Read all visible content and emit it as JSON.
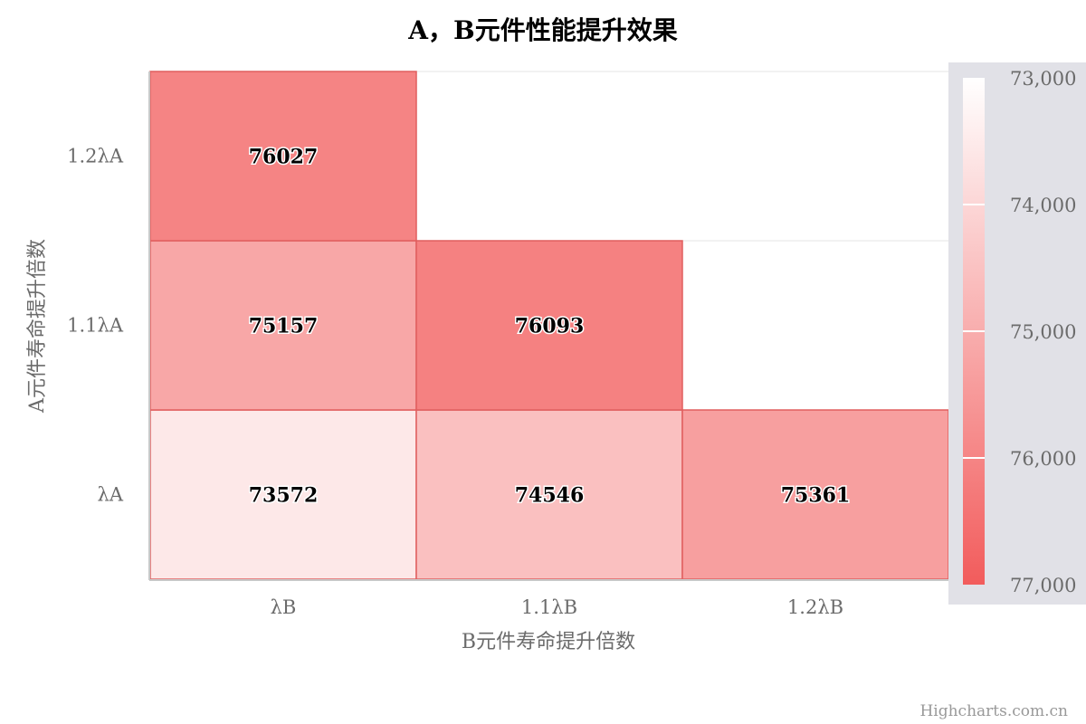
{
  "chart_data": {
    "type": "heatmap",
    "title": "A，B元件性能提升效果",
    "xlabel": "B元件寿命提升倍数",
    "ylabel": "A元件寿命提升倍数",
    "x_categories": [
      "λB",
      "1.1λB",
      "1.2λB"
    ],
    "y_categories": [
      "λA",
      "1.1λA",
      "1.2λA"
    ],
    "cells": [
      {
        "x": "λB",
        "y": "λA",
        "value": 73572
      },
      {
        "x": "1.1λB",
        "y": "λA",
        "value": 74546
      },
      {
        "x": "1.2λB",
        "y": "λA",
        "value": 75361
      },
      {
        "x": "λB",
        "y": "1.1λA",
        "value": 75157
      },
      {
        "x": "1.1λB",
        "y": "1.1λA",
        "value": 76093
      },
      {
        "x": "λB",
        "y": "1.2λA",
        "value": 76027
      }
    ],
    "color_axis": {
      "min": 73000,
      "max": 77000,
      "min_color": "#ffffff",
      "max_color": "#f25c5c",
      "tick_labels": [
        "73,000",
        "74,000",
        "75,000",
        "76,000",
        "77,000"
      ],
      "placement": "right"
    },
    "grid": true
  },
  "credit": "Highcharts.com.cn",
  "colors": {
    "legend_bg": "#e1e1e7",
    "cell_border": "#e05f5f",
    "axis_text": "#6b6b6b"
  }
}
